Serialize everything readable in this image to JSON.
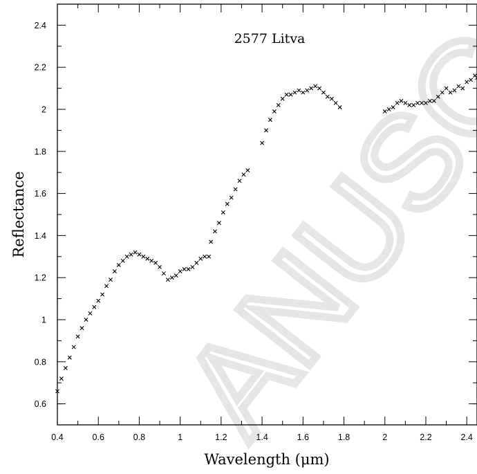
{
  "chart_data": {
    "type": "scatter",
    "title": "2577 Litva",
    "xlabel": "Wavelength (μm)",
    "ylabel": "Reflectance",
    "xlim": [
      0.4,
      2.45
    ],
    "ylim": [
      0.5,
      2.5
    ],
    "xticks": [
      0.4,
      0.6,
      0.8,
      1,
      1.2,
      1.4,
      1.6,
      1.8,
      2,
      2.2,
      2.4
    ],
    "yticks": [
      0.6,
      0.8,
      1,
      1.2,
      1.4,
      1.6,
      1.8,
      2,
      2.2,
      2.4
    ],
    "grid": false,
    "legend": false,
    "marker": "x",
    "series": [
      {
        "x": [
          0.4,
          0.42,
          0.44,
          0.46,
          0.48,
          0.5,
          0.52,
          0.54,
          0.56,
          0.58,
          0.6,
          0.62,
          0.64,
          0.66,
          0.68,
          0.7,
          0.72,
          0.74,
          0.76,
          0.78,
          0.8,
          0.82,
          0.84,
          0.86,
          0.88,
          0.9,
          0.92,
          0.94,
          0.96,
          0.98,
          1.0,
          1.02,
          1.04,
          1.06,
          1.08,
          1.1,
          1.12,
          1.14
        ],
        "y": [
          0.66,
          0.72,
          0.77,
          0.82,
          0.87,
          0.92,
          0.96,
          1.0,
          1.03,
          1.06,
          1.09,
          1.12,
          1.16,
          1.19,
          1.23,
          1.26,
          1.28,
          1.3,
          1.31,
          1.32,
          1.31,
          1.3,
          1.29,
          1.28,
          1.27,
          1.25,
          1.22,
          1.19,
          1.2,
          1.21,
          1.23,
          1.24,
          1.24,
          1.25,
          1.27,
          1.29,
          1.3,
          1.3
        ]
      },
      {
        "x": [
          1.15,
          1.17,
          1.19,
          1.21,
          1.23,
          1.25,
          1.27,
          1.29,
          1.31,
          1.33,
          1.4,
          1.42,
          1.44,
          1.46,
          1.48,
          1.5,
          1.52,
          1.54,
          1.56,
          1.58,
          1.6,
          1.62,
          1.64,
          1.66,
          1.68,
          1.7,
          1.72,
          1.74,
          1.76,
          1.78
        ],
        "y": [
          1.37,
          1.42,
          1.46,
          1.51,
          1.55,
          1.58,
          1.62,
          1.66,
          1.69,
          1.71,
          1.84,
          1.9,
          1.95,
          1.99,
          2.02,
          2.05,
          2.07,
          2.07,
          2.08,
          2.09,
          2.08,
          2.09,
          2.1,
          2.11,
          2.1,
          2.08,
          2.06,
          2.05,
          2.03,
          2.01
        ]
      },
      {
        "x": [
          2.0,
          2.02,
          2.04,
          2.06,
          2.08,
          2.1,
          2.12,
          2.14,
          2.16,
          2.18,
          2.2,
          2.22,
          2.24,
          2.26,
          2.28,
          2.3,
          2.32,
          2.34,
          2.36,
          2.38,
          2.4,
          2.42,
          2.44,
          2.45
        ],
        "y": [
          1.99,
          2.0,
          2.01,
          2.03,
          2.04,
          2.03,
          2.02,
          2.02,
          2.03,
          2.03,
          2.03,
          2.04,
          2.04,
          2.06,
          2.08,
          2.1,
          2.08,
          2.09,
          2.11,
          2.1,
          2.13,
          2.14,
          2.16,
          2.15
        ]
      }
    ],
    "annotations": []
  },
  "watermark": "ANUSC"
}
